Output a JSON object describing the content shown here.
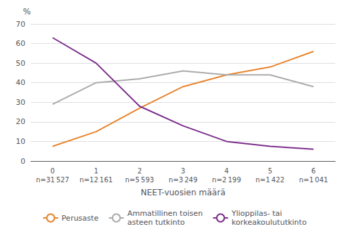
{
  "chart_data": {
    "type": "line",
    "xlabel": "NEET-vuosien määrä",
    "ylabel": "%",
    "categories": [
      "0\nn=31 527",
      "1\nn=12 161",
      "2\nn=5 593",
      "3\nn=3 249",
      "4\nn=2 199",
      "5\nn=1 422",
      "6\nn=1 041"
    ],
    "series": [
      {
        "name": "Perusaste",
        "color": "#E8832A",
        "values": [
          7.5,
          15,
          27,
          38,
          44,
          48,
          56
        ]
      },
      {
        "name": "Ammatillinen toisen\nasteen tutkinto",
        "color": "#AAAAAA",
        "values": [
          29,
          40,
          42,
          46,
          44,
          44,
          38
        ]
      },
      {
        "name": "Ylioppilas- tai\nkorkeakoulututkinto",
        "color": "#7B2D8B",
        "values": [
          63,
          50,
          28,
          18,
          10,
          7.5,
          6
        ]
      }
    ],
    "ylim": [
      0,
      70
    ],
    "yticks": [
      0,
      10,
      20,
      30,
      40,
      50,
      60,
      70
    ],
    "grid": true,
    "legend": "bottom"
  }
}
